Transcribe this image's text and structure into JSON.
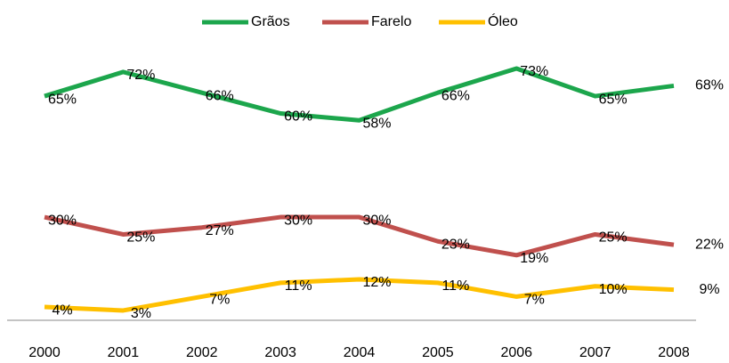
{
  "chart_data": {
    "type": "line",
    "categories": [
      "2000",
      "2001",
      "2002",
      "2003",
      "2004",
      "2005",
      "2006",
      "2007",
      "2008"
    ],
    "series": [
      {
        "name": "Grãos",
        "color": "#1ca64c",
        "values": [
          65,
          72,
          66,
          60,
          58,
          66,
          73,
          65,
          68
        ],
        "value_labels": [
          "65%",
          "72%",
          "66%",
          "60%",
          "58%",
          "66%",
          "73%",
          "65%",
          "68%"
        ]
      },
      {
        "name": "Farelo",
        "color": "#c0504d",
        "values": [
          30,
          25,
          27,
          30,
          30,
          23,
          19,
          25,
          22
        ],
        "value_labels": [
          "30%",
          "25%",
          "27%",
          "30%",
          "30%",
          "23%",
          "19%",
          "25%",
          "22%"
        ]
      },
      {
        "name": "Óleo",
        "color": "#ffc000",
        "values": [
          4,
          3,
          7,
          11,
          12,
          11,
          7,
          10,
          9
        ],
        "value_labels": [
          "4%",
          "3%",
          "7%",
          "11%",
          "12%",
          "11%",
          "7%",
          "10%",
          "9%"
        ]
      }
    ],
    "legend": "top"
  }
}
